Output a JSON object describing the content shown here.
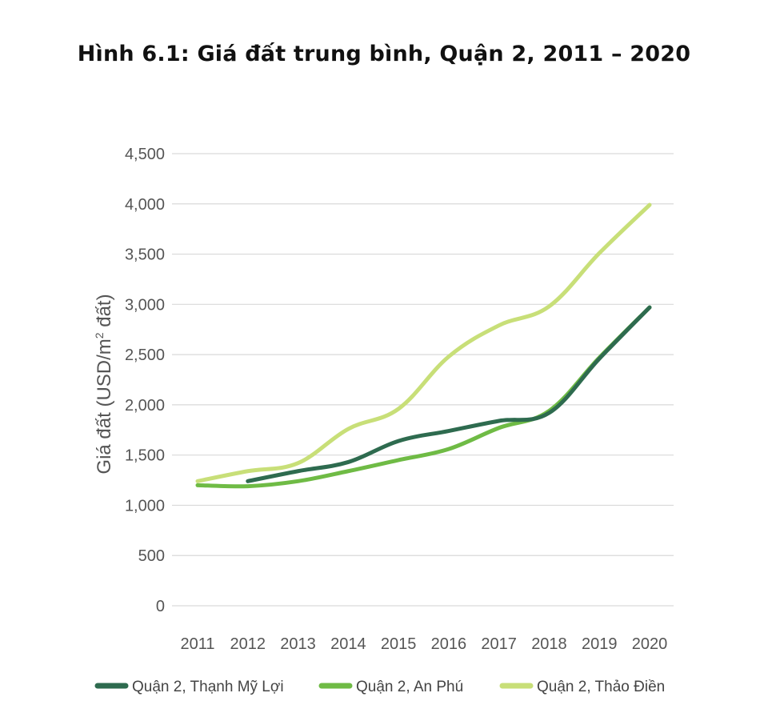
{
  "chart_data": {
    "type": "line",
    "title": "Hình 6.1: Giá đất trung bình, Quận 2, 2011 – 2020",
    "ylabel_main": "Giá đất (USD/m",
    "ylabel_sup": "2",
    "ylabel_end": " đất)",
    "xlabel": "",
    "categories": [
      "2011",
      "2012",
      "2013",
      "2014",
      "2015",
      "2016",
      "2017",
      "2018",
      "2019",
      "2020"
    ],
    "yticks": [
      "0",
      "500",
      "1,000",
      "1,500",
      "2,000",
      "2,500",
      "3,000",
      "3,500",
      "4,000",
      "4,500"
    ],
    "ylim": [
      0,
      4500
    ],
    "grid": true,
    "legend_position": "bottom",
    "series": [
      {
        "name": "Quận 2, Thạnh Mỹ Lợi",
        "color": "#2e6b4f",
        "values": [
          null,
          1240,
          1340,
          1430,
          1640,
          1740,
          1840,
          1920,
          2460,
          2970
        ]
      },
      {
        "name": "Quận 2, An Phú",
        "color": "#6fbb45",
        "values": [
          1200,
          1190,
          1240,
          1340,
          1450,
          1560,
          1770,
          1940,
          2470,
          2970
        ]
      },
      {
        "name": "Quận 2, Thảo Điền",
        "color": "#c8df78",
        "values": [
          1240,
          1340,
          1420,
          1760,
          1960,
          2480,
          2790,
          2980,
          3510,
          3990
        ]
      }
    ]
  }
}
